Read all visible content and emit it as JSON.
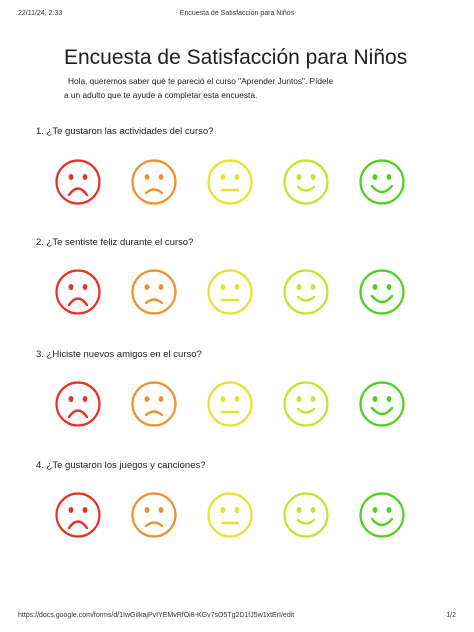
{
  "print_header": {
    "date": "22/11/24, 2:33",
    "title": "Encuesta de Satisfacción para Niños"
  },
  "form": {
    "title": "Encuesta de Satisfacción para Niños",
    "description_line1": "Hola, queremos saber qué te pareció el curso \"Aprender Juntos\". Pídele",
    "description_line2": "a un adulto que te ayude a completar esta encuesta."
  },
  "questions": [
    {
      "label": "1. ¿Te gustaron las actividades del curso?"
    },
    {
      "label": "2. ¿Te sentiste feliz durante el curso?"
    },
    {
      "label": "3. ¿Hiciste nuevos amigos en el curso?"
    },
    {
      "label": "4. ¿Te gustaron los juegos y canciones?"
    }
  ],
  "rating_faces": [
    {
      "icon": "very-sad-face-icon",
      "color": "#e8302a"
    },
    {
      "icon": "sad-face-icon",
      "color": "#f0902c"
    },
    {
      "icon": "neutral-face-icon",
      "color": "#e6e22e"
    },
    {
      "icon": "happy-face-icon",
      "color": "#c9e12c"
    },
    {
      "icon": "very-happy-face-icon",
      "color": "#4fd11e"
    }
  ],
  "print_footer": {
    "url": "https://docs.google.com/forms/d/1IwGiIkajPvIYEMvRfOi8-KGv7sO5Tg2D1fJ5w1xtErI/edit",
    "page": "1/2"
  }
}
